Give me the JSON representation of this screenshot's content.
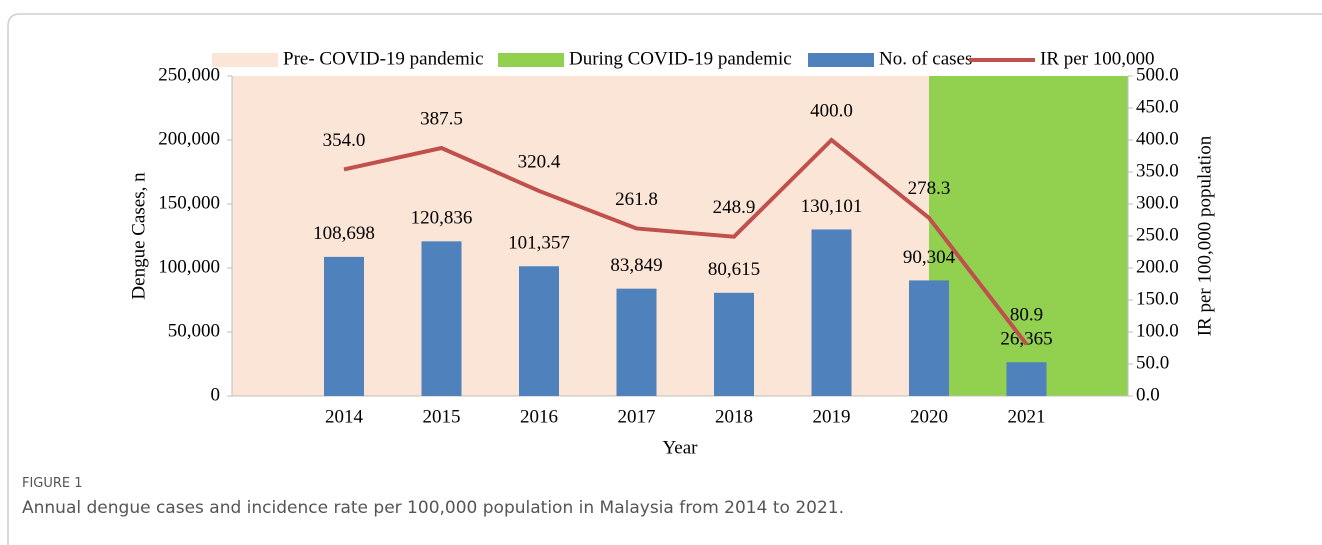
{
  "figure": {
    "label": "FIGURE 1",
    "caption": "Annual dengue cases and incidence rate per 100,000 population in Malaysia from 2014 to 2021."
  },
  "chart_data": {
    "type": "bar-line",
    "x_label": "Year",
    "y_label": "Dengue Cases, n",
    "y2_label": "IR per 100,000 population",
    "categories": [
      "2014",
      "2015",
      "2016",
      "2017",
      "2018",
      "2019",
      "2020",
      "2021"
    ],
    "shaded_regions": [
      {
        "name": "Pre- COVID-19 pandemic",
        "color": "#fbe5d6",
        "start": "2014",
        "end": "2020"
      },
      {
        "name": "During COVID-19 pandemic",
        "color": "#92d050",
        "start": "2020",
        "end": "2021"
      }
    ],
    "series": [
      {
        "name": "No. of cases",
        "type": "bar",
        "color": "#4f81bd",
        "values": [
          108698,
          120836,
          101357,
          83849,
          80615,
          130101,
          90304,
          26365
        ],
        "value_labels": [
          "108,698",
          "120,836",
          "101,357",
          "83,849",
          "80,615",
          "130,101",
          "90,304",
          "26,365"
        ]
      },
      {
        "name": "IR per 100,000",
        "type": "line",
        "axis": "y2",
        "color": "#c0504d",
        "values": [
          354.0,
          387.5,
          320.4,
          261.8,
          248.9,
          400.0,
          278.3,
          80.9
        ],
        "value_labels": [
          "354.0",
          "387.5",
          "320.4",
          "261.8",
          "248.9",
          "400.0",
          "278.3",
          "80.9"
        ]
      }
    ],
    "ylim": [
      0,
      250000
    ],
    "yticks": [
      0,
      {
        "value": 50000,
        "label": "50,000"
      },
      {
        "value": 100000,
        "label": "100,000"
      },
      {
        "value": 150000,
        "label": "150,000"
      },
      {
        "value": 200000,
        "label": "200,000"
      },
      {
        "value": 250000,
        "label": "250,000"
      }
    ],
    "y2lim": [
      0,
      500
    ],
    "y2ticks": [
      {
        "value": 0,
        "label": "0.0"
      },
      {
        "value": 50,
        "label": "50.0"
      },
      {
        "value": 100,
        "label": "100.0"
      },
      {
        "value": 150,
        "label": "150.0"
      },
      {
        "value": 200,
        "label": "200.0"
      },
      {
        "value": 250,
        "label": "250.0"
      },
      {
        "value": 300,
        "label": "300.0"
      },
      {
        "value": 350,
        "label": "350.0"
      },
      {
        "value": 400,
        "label": "400.0"
      },
      {
        "value": 450,
        "label": "450.0"
      },
      {
        "value": 500,
        "label": "500.0"
      }
    ],
    "legend": "top"
  }
}
